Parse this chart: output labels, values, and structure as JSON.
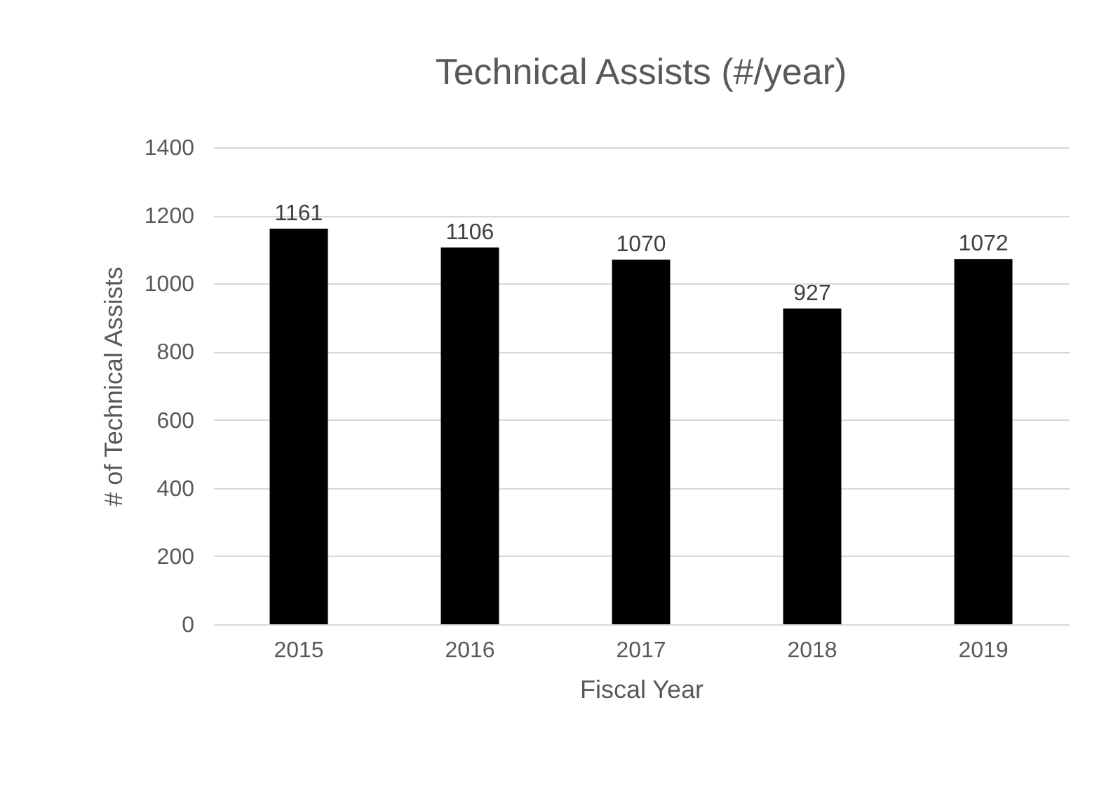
{
  "chart_data": {
    "type": "bar",
    "title": "Technical Assists (#/year)",
    "xlabel": "Fiscal Year",
    "ylabel": "# of Technical Assists",
    "categories": [
      "2015",
      "2016",
      "2017",
      "2018",
      "2019"
    ],
    "values": [
      1161,
      1106,
      1070,
      927,
      1072
    ],
    "color": "#000000",
    "ylim": [
      0,
      1400
    ],
    "yticks": [
      0,
      200,
      400,
      600,
      800,
      1000,
      1200,
      1400
    ],
    "grid": "y",
    "data_labels": true
  }
}
